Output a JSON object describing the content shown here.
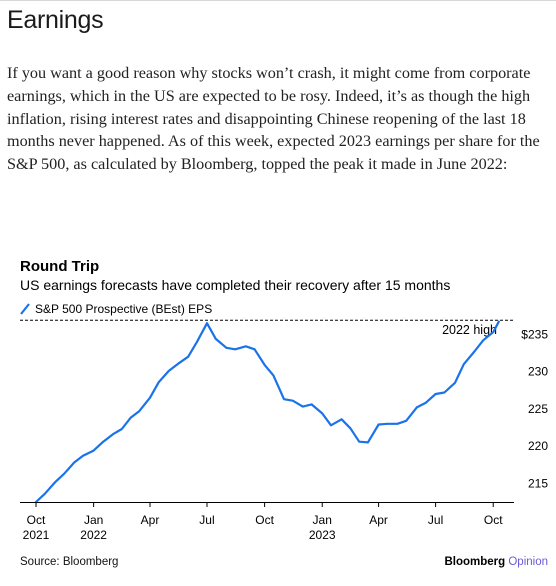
{
  "article": {
    "heading": "Earnings",
    "paragraph": "If you want a good reason why stocks won’t crash, it might come from corporate earnings, which in the US are expected to be rosy. Indeed, it’s as though the high inflation, rising interest rates and disappointing Chinese reopening of the last 18 months never happened. As of this week, expected 2023 earnings per share for the S&P 500, as calculated by Bloomberg, topped the peak it made in June 2022:"
  },
  "colors": {
    "line": "#1a73e8",
    "axis": "#000000",
    "reference": "#000000",
    "brand_opinion": "#6b5bd6"
  },
  "chart_data": {
    "type": "line",
    "title": "Round Trip",
    "subtitle": "US earnings forecasts have completed their recovery after 15 months",
    "legend": [
      "S&P 500 Prospective (BEst) EPS"
    ],
    "legend_position": "top-left",
    "annotation": "2022 high",
    "reference_line": 236.9,
    "xlabel": "",
    "ylabel": "",
    "x_ticks": [
      {
        "date": "2021-10-01",
        "label": "Oct",
        "sublabel": "2021"
      },
      {
        "date": "2022-01-01",
        "label": "Jan",
        "sublabel": "2022"
      },
      {
        "date": "2022-04-01",
        "label": "Apr",
        "sublabel": ""
      },
      {
        "date": "2022-07-01",
        "label": "Jul",
        "sublabel": ""
      },
      {
        "date": "2022-10-01",
        "label": "Oct",
        "sublabel": ""
      },
      {
        "date": "2023-01-01",
        "label": "Jan",
        "sublabel": "2023"
      },
      {
        "date": "2023-04-01",
        "label": "Apr",
        "sublabel": ""
      },
      {
        "date": "2023-07-01",
        "label": "Jul",
        "sublabel": ""
      },
      {
        "date": "2023-10-01",
        "label": "Oct",
        "sublabel": ""
      }
    ],
    "y_ticks": [
      {
        "value": 215,
        "label": "215"
      },
      {
        "value": 220,
        "label": "220"
      },
      {
        "value": 225,
        "label": "225"
      },
      {
        "value": 230,
        "label": "230"
      },
      {
        "value": 235,
        "label": "$235"
      }
    ],
    "ylim": [
      212.5,
      237.2
    ],
    "xlim": [
      "2021-10-01",
      "2023-10-31"
    ],
    "grid": false,
    "series": [
      {
        "name": "S&P 500 Prospective (BEst) EPS",
        "x": [
          "2021-10-01",
          "2021-10-15",
          "2021-11-01",
          "2021-11-15",
          "2021-12-01",
          "2021-12-15",
          "2022-01-01",
          "2022-01-15",
          "2022-02-01",
          "2022-02-15",
          "2022-03-01",
          "2022-03-15",
          "2022-04-01",
          "2022-04-15",
          "2022-05-01",
          "2022-05-15",
          "2022-06-01",
          "2022-06-15",
          "2022-07-01",
          "2022-07-15",
          "2022-08-01",
          "2022-08-15",
          "2022-09-01",
          "2022-09-15",
          "2022-10-01",
          "2022-10-15",
          "2022-11-01",
          "2022-11-15",
          "2022-12-01",
          "2022-12-15",
          "2023-01-01",
          "2023-01-15",
          "2023-02-01",
          "2023-02-15",
          "2023-03-01",
          "2023-03-15",
          "2023-04-01",
          "2023-04-15",
          "2023-05-01",
          "2023-05-15",
          "2023-06-01",
          "2023-06-15",
          "2023-07-01",
          "2023-07-15",
          "2023-08-01",
          "2023-08-15",
          "2023-09-01",
          "2023-09-15",
          "2023-10-01",
          "2023-10-10"
        ],
        "y": [
          212.5,
          213.6,
          215.2,
          216.3,
          217.8,
          218.7,
          219.4,
          220.5,
          221.6,
          222.3,
          223.8,
          224.7,
          226.5,
          228.6,
          230.1,
          231.0,
          232.0,
          234.0,
          236.5,
          234.4,
          233.2,
          233.0,
          233.4,
          233.0,
          230.9,
          229.5,
          226.3,
          226.1,
          225.3,
          225.6,
          224.4,
          222.8,
          223.6,
          222.4,
          220.6,
          220.5,
          222.9,
          223.0,
          223.0,
          223.4,
          225.2,
          225.8,
          227.0,
          227.2,
          228.5,
          231.0,
          232.7,
          234.2,
          235.3,
          236.7
        ]
      }
    ]
  },
  "footer": {
    "source": "Source: Bloomberg",
    "brand_main": "Bloomberg",
    "brand_sub": "Opinion"
  }
}
